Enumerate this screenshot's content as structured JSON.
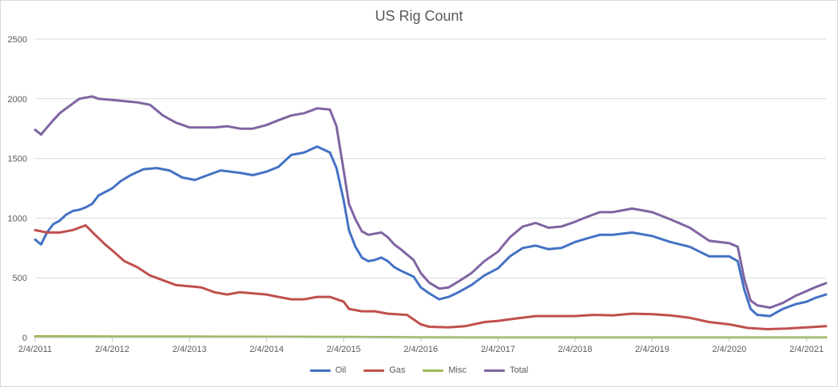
{
  "chart_data": {
    "type": "line",
    "title": "US Rig Count",
    "xlabel": "",
    "ylabel": "",
    "ylim": [
      0,
      2500
    ],
    "yticks": [
      0,
      500,
      1000,
      1500,
      2000,
      2500
    ],
    "xlim": [
      "2011-02-04",
      "2021-05-07"
    ],
    "xticks": [
      "2/4/2011",
      "2/4/2012",
      "2/4/2013",
      "2/4/2014",
      "2/4/2015",
      "2/4/2016",
      "2/4/2017",
      "2/4/2018",
      "2/4/2019",
      "2/4/2020",
      "2/4/2021"
    ],
    "grid": "horizontal",
    "legend": "bottom",
    "series": [
      {
        "name": "Oil",
        "color": "#4472c4",
        "points": [
          [
            "2011-02-04",
            820
          ],
          [
            "2011-03-04",
            780
          ],
          [
            "2011-04-01",
            880
          ],
          [
            "2011-05-01",
            950
          ],
          [
            "2011-06-01",
            980
          ],
          [
            "2011-07-01",
            1030
          ],
          [
            "2011-08-01",
            1060
          ],
          [
            "2011-09-01",
            1070
          ],
          [
            "2011-10-01",
            1090
          ],
          [
            "2011-11-01",
            1120
          ],
          [
            "2011-12-01",
            1190
          ],
          [
            "2012-02-04",
            1250
          ],
          [
            "2012-03-15",
            1310
          ],
          [
            "2012-05-01",
            1360
          ],
          [
            "2012-07-01",
            1410
          ],
          [
            "2012-09-01",
            1420
          ],
          [
            "2012-11-01",
            1400
          ],
          [
            "2013-01-01",
            1340
          ],
          [
            "2013-03-01",
            1320
          ],
          [
            "2013-05-01",
            1360
          ],
          [
            "2013-07-01",
            1400
          ],
          [
            "2013-10-01",
            1380
          ],
          [
            "2013-12-01",
            1360
          ],
          [
            "2014-02-04",
            1390
          ],
          [
            "2014-04-01",
            1430
          ],
          [
            "2014-06-01",
            1530
          ],
          [
            "2014-08-01",
            1550
          ],
          [
            "2014-10-01",
            1600
          ],
          [
            "2014-12-01",
            1550
          ],
          [
            "2015-01-01",
            1420
          ],
          [
            "2015-02-04",
            1150
          ],
          [
            "2015-03-01",
            900
          ],
          [
            "2015-04-01",
            760
          ],
          [
            "2015-05-01",
            670
          ],
          [
            "2015-06-01",
            640
          ],
          [
            "2015-07-01",
            650
          ],
          [
            "2015-08-01",
            670
          ],
          [
            "2015-09-01",
            640
          ],
          [
            "2015-10-01",
            590
          ],
          [
            "2015-11-01",
            560
          ],
          [
            "2016-01-01",
            510
          ],
          [
            "2016-02-04",
            420
          ],
          [
            "2016-03-15",
            370
          ],
          [
            "2016-05-01",
            320
          ],
          [
            "2016-06-15",
            340
          ],
          [
            "2016-08-01",
            380
          ],
          [
            "2016-10-01",
            440
          ],
          [
            "2016-12-01",
            520
          ],
          [
            "2017-02-04",
            580
          ],
          [
            "2017-04-01",
            680
          ],
          [
            "2017-06-01",
            750
          ],
          [
            "2017-08-01",
            770
          ],
          [
            "2017-10-01",
            740
          ],
          [
            "2017-12-01",
            750
          ],
          [
            "2018-02-04",
            800
          ],
          [
            "2018-04-01",
            830
          ],
          [
            "2018-06-01",
            860
          ],
          [
            "2018-08-01",
            860
          ],
          [
            "2018-11-01",
            880
          ],
          [
            "2019-02-04",
            850
          ],
          [
            "2019-05-01",
            800
          ],
          [
            "2019-08-01",
            760
          ],
          [
            "2019-11-01",
            680
          ],
          [
            "2020-02-04",
            680
          ],
          [
            "2020-03-15",
            640
          ],
          [
            "2020-04-15",
            400
          ],
          [
            "2020-05-15",
            240
          ],
          [
            "2020-06-15",
            190
          ],
          [
            "2020-08-15",
            180
          ],
          [
            "2020-10-15",
            240
          ],
          [
            "2020-12-15",
            280
          ],
          [
            "2021-02-04",
            300
          ],
          [
            "2021-03-15",
            330
          ],
          [
            "2021-05-07",
            360
          ]
        ]
      },
      {
        "name": "Gas",
        "color": "#c0504d",
        "points": [
          [
            "2011-02-04",
            900
          ],
          [
            "2011-04-01",
            880
          ],
          [
            "2011-06-01",
            880
          ],
          [
            "2011-08-01",
            900
          ],
          [
            "2011-10-01",
            940
          ],
          [
            "2011-11-15",
            860
          ],
          [
            "2012-01-01",
            780
          ],
          [
            "2012-02-04",
            730
          ],
          [
            "2012-04-01",
            640
          ],
          [
            "2012-06-01",
            590
          ],
          [
            "2012-08-01",
            520
          ],
          [
            "2012-10-01",
            480
          ],
          [
            "2012-12-01",
            440
          ],
          [
            "2013-02-04",
            430
          ],
          [
            "2013-04-01",
            420
          ],
          [
            "2013-06-01",
            380
          ],
          [
            "2013-08-01",
            360
          ],
          [
            "2013-10-01",
            380
          ],
          [
            "2013-12-01",
            370
          ],
          [
            "2014-02-04",
            360
          ],
          [
            "2014-04-01",
            340
          ],
          [
            "2014-06-01",
            320
          ],
          [
            "2014-08-01",
            320
          ],
          [
            "2014-10-01",
            340
          ],
          [
            "2014-12-01",
            340
          ],
          [
            "2015-02-04",
            300
          ],
          [
            "2015-03-01",
            240
          ],
          [
            "2015-05-01",
            220
          ],
          [
            "2015-07-01",
            220
          ],
          [
            "2015-09-01",
            200
          ],
          [
            "2015-12-01",
            190
          ],
          [
            "2016-02-04",
            110
          ],
          [
            "2016-03-15",
            90
          ],
          [
            "2016-06-15",
            85
          ],
          [
            "2016-09-01",
            95
          ],
          [
            "2016-12-01",
            130
          ],
          [
            "2017-02-04",
            140
          ],
          [
            "2017-05-01",
            160
          ],
          [
            "2017-08-01",
            180
          ],
          [
            "2017-11-01",
            180
          ],
          [
            "2018-02-04",
            180
          ],
          [
            "2018-05-01",
            190
          ],
          [
            "2018-08-01",
            185
          ],
          [
            "2018-11-01",
            200
          ],
          [
            "2019-02-04",
            195
          ],
          [
            "2019-05-01",
            185
          ],
          [
            "2019-08-01",
            165
          ],
          [
            "2019-11-01",
            130
          ],
          [
            "2020-02-04",
            110
          ],
          [
            "2020-05-01",
            80
          ],
          [
            "2020-08-01",
            70
          ],
          [
            "2020-11-01",
            75
          ],
          [
            "2021-02-04",
            85
          ],
          [
            "2021-05-07",
            95
          ]
        ]
      },
      {
        "name": "Misc",
        "color": "#9bbb59",
        "points": [
          [
            "2011-02-04",
            10
          ],
          [
            "2012-02-04",
            9
          ],
          [
            "2013-02-04",
            8
          ],
          [
            "2014-02-04",
            7
          ],
          [
            "2015-02-04",
            5
          ],
          [
            "2016-02-04",
            2
          ],
          [
            "2017-02-04",
            1
          ],
          [
            "2018-02-04",
            1
          ],
          [
            "2019-02-04",
            1
          ],
          [
            "2020-02-04",
            1
          ],
          [
            "2021-05-07",
            1
          ]
        ]
      },
      {
        "name": "Total",
        "color": "#8064a2",
        "points": [
          [
            "2011-02-04",
            1740
          ],
          [
            "2011-03-04",
            1700
          ],
          [
            "2011-04-01",
            1760
          ],
          [
            "2011-05-01",
            1820
          ],
          [
            "2011-06-01",
            1880
          ],
          [
            "2011-07-01",
            1920
          ],
          [
            "2011-08-01",
            1960
          ],
          [
            "2011-09-01",
            2000
          ],
          [
            "2011-10-01",
            2010
          ],
          [
            "2011-11-01",
            2020
          ],
          [
            "2011-12-01",
            2000
          ],
          [
            "2012-02-04",
            1990
          ],
          [
            "2012-04-01",
            1980
          ],
          [
            "2012-06-01",
            1970
          ],
          [
            "2012-08-01",
            1950
          ],
          [
            "2012-10-01",
            1860
          ],
          [
            "2012-12-01",
            1800
          ],
          [
            "2013-02-04",
            1760
          ],
          [
            "2013-04-01",
            1760
          ],
          [
            "2013-06-01",
            1760
          ],
          [
            "2013-08-01",
            1770
          ],
          [
            "2013-10-01",
            1750
          ],
          [
            "2013-12-01",
            1750
          ],
          [
            "2014-02-04",
            1780
          ],
          [
            "2014-04-01",
            1820
          ],
          [
            "2014-06-01",
            1860
          ],
          [
            "2014-08-01",
            1880
          ],
          [
            "2014-10-01",
            1920
          ],
          [
            "2014-12-01",
            1910
          ],
          [
            "2015-01-01",
            1770
          ],
          [
            "2015-02-04",
            1400
          ],
          [
            "2015-03-01",
            1120
          ],
          [
            "2015-04-01",
            990
          ],
          [
            "2015-05-01",
            890
          ],
          [
            "2015-06-01",
            860
          ],
          [
            "2015-07-01",
            870
          ],
          [
            "2015-08-01",
            880
          ],
          [
            "2015-09-01",
            840
          ],
          [
            "2015-10-01",
            780
          ],
          [
            "2015-11-01",
            740
          ],
          [
            "2016-01-01",
            650
          ],
          [
            "2016-02-04",
            540
          ],
          [
            "2016-03-15",
            460
          ],
          [
            "2016-05-01",
            410
          ],
          [
            "2016-06-15",
            420
          ],
          [
            "2016-08-01",
            470
          ],
          [
            "2016-10-01",
            540
          ],
          [
            "2016-12-01",
            640
          ],
          [
            "2017-02-04",
            720
          ],
          [
            "2017-04-01",
            840
          ],
          [
            "2017-06-01",
            930
          ],
          [
            "2017-08-01",
            960
          ],
          [
            "2017-10-01",
            920
          ],
          [
            "2017-12-01",
            930
          ],
          [
            "2018-02-04",
            970
          ],
          [
            "2018-04-01",
            1010
          ],
          [
            "2018-06-01",
            1050
          ],
          [
            "2018-08-01",
            1050
          ],
          [
            "2018-11-01",
            1080
          ],
          [
            "2019-02-04",
            1050
          ],
          [
            "2019-05-01",
            990
          ],
          [
            "2019-08-01",
            920
          ],
          [
            "2019-11-01",
            810
          ],
          [
            "2020-02-04",
            790
          ],
          [
            "2020-03-15",
            760
          ],
          [
            "2020-04-15",
            490
          ],
          [
            "2020-05-15",
            310
          ],
          [
            "2020-06-15",
            270
          ],
          [
            "2020-08-15",
            250
          ],
          [
            "2020-10-15",
            290
          ],
          [
            "2020-12-15",
            350
          ],
          [
            "2021-02-04",
            390
          ],
          [
            "2021-03-15",
            420
          ],
          [
            "2021-05-07",
            455
          ]
        ]
      }
    ]
  }
}
